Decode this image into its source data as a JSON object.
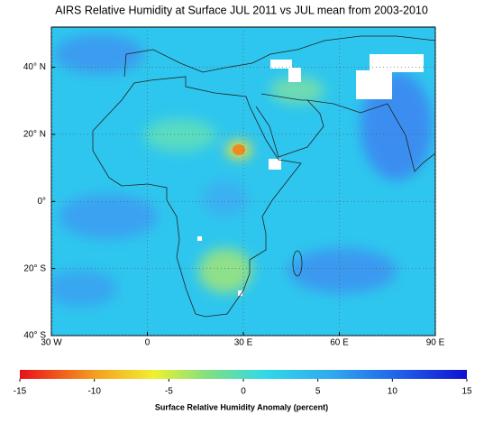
{
  "map": {
    "title": "AIRS Relative Humidity at Surface JUL 2011 vs JUL mean from 2003-2010",
    "xlim": [
      -30,
      90
    ],
    "ylim": [
      -40,
      52
    ],
    "xticks": [
      {
        "value": -30,
        "label": "30 W"
      },
      0,
      {
        "value": 30,
        "label": "30 E"
      },
      {
        "value": 60,
        "label": "60 E"
      },
      {
        "value": 90,
        "label": "90 E"
      }
    ],
    "yticks": [
      {
        "value": 40,
        "label": "40° N"
      },
      {
        "value": 20,
        "label": "20° N"
      },
      {
        "value": 0,
        "label": "0°"
      },
      {
        "value": -20,
        "label": "20° S"
      },
      {
        "value": -40,
        "label": "40° S"
      }
    ],
    "grid": true,
    "colorbar": {
      "lim": [
        -15,
        15
      ],
      "ticks": [
        -15,
        -10,
        -5,
        0,
        5,
        10,
        15
      ],
      "label": "Surface Relative Humidity Anomaly (percent)"
    }
  }
}
